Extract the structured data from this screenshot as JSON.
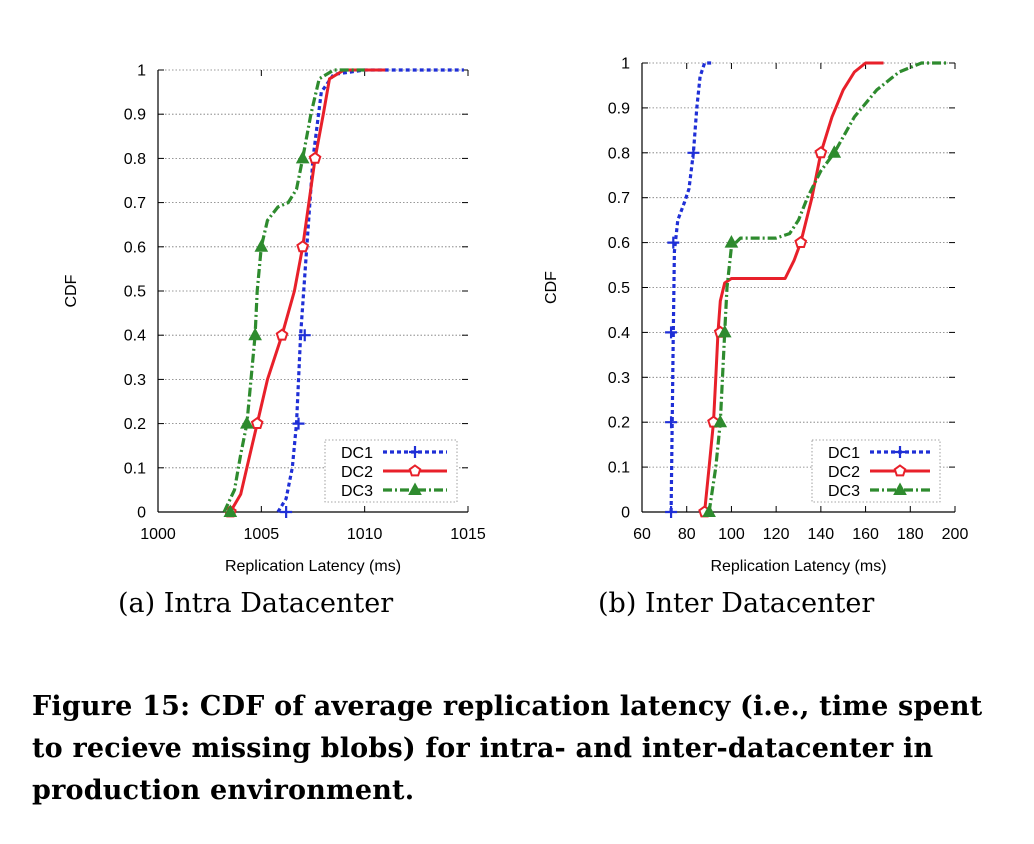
{
  "chart_data": [
    {
      "type": "line",
      "subcaption": "(a) Intra Datacenter",
      "xlabel": "Replication Latency (ms)",
      "ylabel": "CDF",
      "xlim": [
        1000,
        1015
      ],
      "ylim": [
        0,
        1
      ],
      "xticks": [
        1000,
        1005,
        1010,
        1015
      ],
      "yticks": [
        0,
        0.1,
        0.2,
        0.3,
        0.4,
        0.5,
        0.6,
        0.7,
        0.8,
        0.9,
        1
      ],
      "grid": true,
      "legend_position": "bottom-right",
      "series": [
        {
          "name": "DC1",
          "color": "#1f2fd6",
          "dash": "dotted",
          "marker": "plus",
          "points": [
            [
              1005.8,
              0
            ],
            [
              1006.2,
              0.03
            ],
            [
              1006.5,
              0.1
            ],
            [
              1006.7,
              0.2
            ],
            [
              1006.9,
              0.4
            ],
            [
              1007.2,
              0.6
            ],
            [
              1007.5,
              0.8
            ],
            [
              1007.9,
              0.95
            ],
            [
              1008.5,
              0.99
            ],
            [
              1010,
              1
            ],
            [
              1014.8,
              1
            ]
          ],
          "markers": [
            [
              1006.2,
              0
            ],
            [
              1006.8,
              0.2
            ],
            [
              1007.1,
              0.4
            ]
          ]
        },
        {
          "name": "DC2",
          "color": "#e8202a",
          "dash": "solid",
          "marker": "pentagon",
          "points": [
            [
              1003.5,
              0
            ],
            [
              1004.0,
              0.04
            ],
            [
              1004.4,
              0.12
            ],
            [
              1004.8,
              0.2
            ],
            [
              1005.3,
              0.3
            ],
            [
              1006.0,
              0.4
            ],
            [
              1006.6,
              0.5
            ],
            [
              1007.0,
              0.6
            ],
            [
              1007.3,
              0.7
            ],
            [
              1007.6,
              0.8
            ],
            [
              1008.0,
              0.9
            ],
            [
              1008.3,
              0.98
            ],
            [
              1009,
              1
            ],
            [
              1011,
              1
            ]
          ],
          "markers": [
            [
              1003.5,
              0
            ],
            [
              1004.8,
              0.2
            ],
            [
              1006.0,
              0.4
            ],
            [
              1007.0,
              0.6
            ],
            [
              1007.6,
              0.8
            ]
          ]
        },
        {
          "name": "DC3",
          "color": "#2e8b2e",
          "dash": "dashdot",
          "marker": "triangle",
          "points": [
            [
              1003.2,
              0
            ],
            [
              1003.7,
              0.05
            ],
            [
              1004.0,
              0.13
            ],
            [
              1004.3,
              0.2
            ],
            [
              1004.5,
              0.3
            ],
            [
              1004.7,
              0.4
            ],
            [
              1004.8,
              0.5
            ],
            [
              1005.0,
              0.6
            ],
            [
              1005.3,
              0.66
            ],
            [
              1005.8,
              0.69
            ],
            [
              1006.3,
              0.7
            ],
            [
              1006.7,
              0.73
            ],
            [
              1007.0,
              0.8
            ],
            [
              1007.4,
              0.9
            ],
            [
              1007.8,
              0.98
            ],
            [
              1008.5,
              1
            ],
            [
              1010,
              1
            ]
          ],
          "markers": [
            [
              1003.5,
              0
            ],
            [
              1004.3,
              0.2
            ],
            [
              1004.7,
              0.4
            ],
            [
              1005.0,
              0.6
            ],
            [
              1007.0,
              0.8
            ]
          ]
        }
      ]
    },
    {
      "type": "line",
      "subcaption": "(b) Inter Datacenter",
      "xlabel": "Replication Latency (ms)",
      "ylabel": "CDF",
      "xlim": [
        60,
        200
      ],
      "ylim": [
        0,
        1
      ],
      "xticks": [
        60,
        80,
        100,
        120,
        140,
        160,
        180,
        200
      ],
      "yticks": [
        0,
        0.1,
        0.2,
        0.3,
        0.4,
        0.5,
        0.6,
        0.7,
        0.8,
        0.9,
        1
      ],
      "grid": true,
      "legend_position": "bottom-right",
      "series": [
        {
          "name": "DC1",
          "color": "#1f2fd6",
          "dash": "dotted",
          "marker": "plus",
          "points": [
            [
              73,
              0
            ],
            [
              73.5,
              0.2
            ],
            [
              74,
              0.4
            ],
            [
              74.5,
              0.58
            ],
            [
              76,
              0.65
            ],
            [
              79,
              0.69
            ],
            [
              81,
              0.72
            ],
            [
              83,
              0.8
            ],
            [
              84.5,
              0.9
            ],
            [
              86,
              0.97
            ],
            [
              88,
              1
            ],
            [
              92,
              1
            ]
          ],
          "markers": [
            [
              73,
              0
            ],
            [
              73,
              0.2
            ],
            [
              73,
              0.4
            ],
            [
              74,
              0.6
            ],
            [
              83,
              0.8
            ]
          ]
        },
        {
          "name": "DC2",
          "color": "#e8202a",
          "dash": "solid",
          "marker": "pentagon",
          "points": [
            [
              88,
              0
            ],
            [
              90,
              0.1
            ],
            [
              92,
              0.2
            ],
            [
              93,
              0.3
            ],
            [
              94,
              0.4
            ],
            [
              95,
              0.47
            ],
            [
              97,
              0.51
            ],
            [
              100,
              0.52
            ],
            [
              115,
              0.52
            ],
            [
              124,
              0.52
            ],
            [
              128,
              0.56
            ],
            [
              131,
              0.6
            ],
            [
              133,
              0.64
            ],
            [
              136,
              0.7
            ],
            [
              140,
              0.8
            ],
            [
              145,
              0.88
            ],
            [
              150,
              0.94
            ],
            [
              155,
              0.98
            ],
            [
              160,
              1
            ],
            [
              168,
              1
            ]
          ],
          "markers": [
            [
              88,
              0
            ],
            [
              92,
              0.2
            ],
            [
              95,
              0.4
            ],
            [
              131,
              0.6
            ],
            [
              140,
              0.8
            ]
          ]
        },
        {
          "name": "DC3",
          "color": "#2e8b2e",
          "dash": "dashdot",
          "marker": "triangle",
          "points": [
            [
              90,
              0
            ],
            [
              93,
              0.1
            ],
            [
              95,
              0.2
            ],
            [
              96,
              0.3
            ],
            [
              97,
              0.4
            ],
            [
              98,
              0.5
            ],
            [
              100,
              0.59
            ],
            [
              104,
              0.61
            ],
            [
              120,
              0.61
            ],
            [
              126,
              0.62
            ],
            [
              130,
              0.65
            ],
            [
              134,
              0.7
            ],
            [
              140,
              0.76
            ],
            [
              146,
              0.8
            ],
            [
              155,
              0.88
            ],
            [
              165,
              0.94
            ],
            [
              175,
              0.98
            ],
            [
              185,
              1
            ],
            [
              196,
              1
            ]
          ],
          "markers": [
            [
              90,
              0
            ],
            [
              95,
              0.2
            ],
            [
              97,
              0.4
            ],
            [
              100,
              0.6
            ],
            [
              146,
              0.8
            ]
          ]
        }
      ]
    }
  ],
  "caption": "Figure 15: CDF of average replication latency (i.e., time spent to recieve missing blobs) for intra- and inter-datacenter in production environment."
}
